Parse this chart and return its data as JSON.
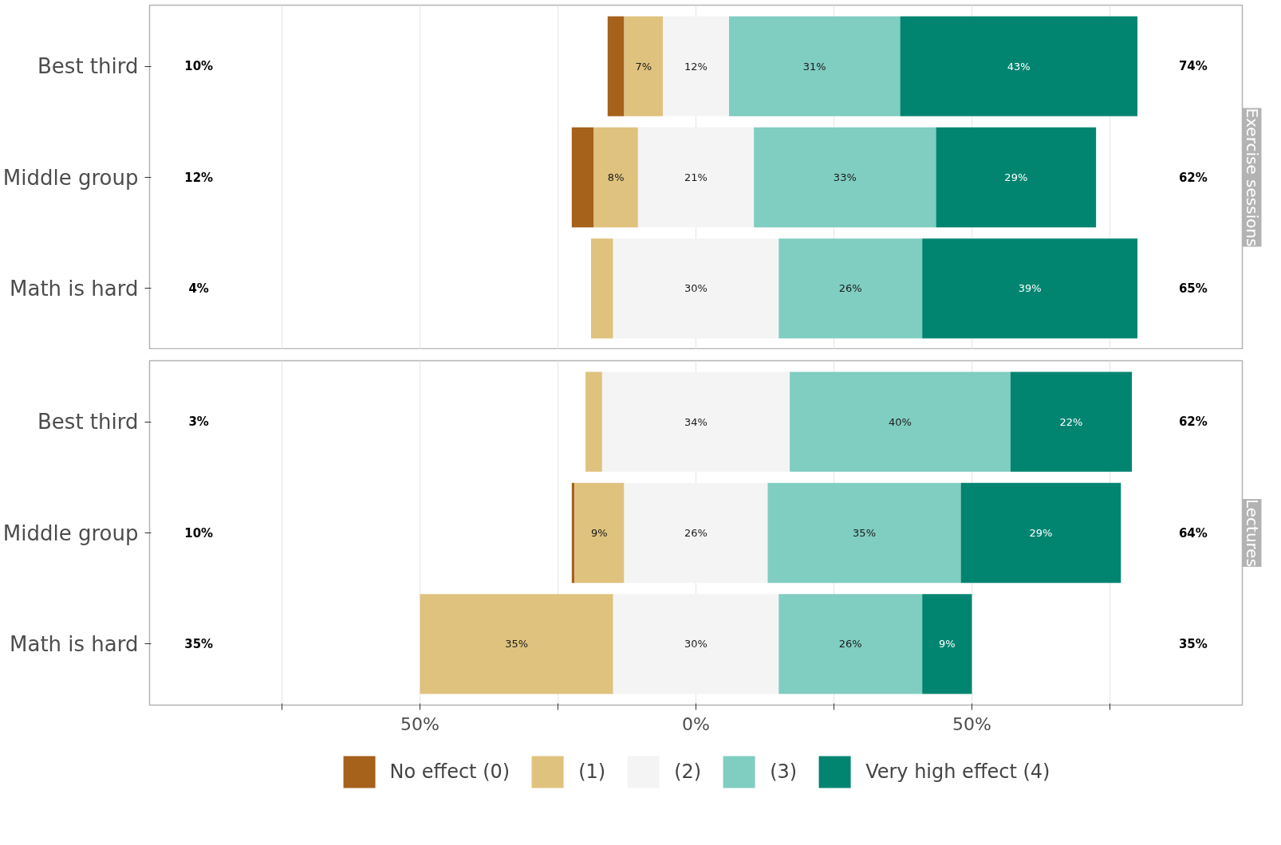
{
  "chart_data": [
    {
      "type": "bar",
      "orientation": "horizontal",
      "title": "Exercise sessions",
      "categories": [
        "Best third",
        "Middle group",
        "Math is hard"
      ],
      "series": [
        {
          "color": "#a6611a",
          "base": [
            -16,
            -22.5,
            null
          ],
          "values": [
            3,
            4,
            null
          ],
          "value_labels": [
            null,
            null,
            null
          ]
        },
        {
          "color": "#dfc27d",
          "base": [
            -13,
            -18.5,
            -19
          ],
          "values": [
            7,
            8,
            4
          ],
          "value_labels": [
            "7%",
            "8%",
            null
          ]
        },
        {
          "color": "#f4f4f4",
          "base": [
            -6,
            -10.5,
            -15
          ],
          "values": [
            12,
            21,
            30
          ],
          "value_labels": [
            "12%",
            "21%",
            "30%"
          ]
        },
        {
          "color": "#80cdc1",
          "base": [
            6,
            10.5,
            15
          ],
          "values": [
            31,
            33,
            26
          ],
          "value_labels": [
            "31%",
            "33%",
            "26%"
          ]
        },
        {
          "color": "#018571",
          "base": [
            37,
            43.5,
            41
          ],
          "values": [
            43,
            29,
            39
          ],
          "value_labels": [
            "43%",
            "29%",
            "39%"
          ]
        }
      ],
      "xlim": [
        -99,
        99
      ],
      "xticks": [
        {
          "value": -75,
          "label": null
        },
        {
          "value": -50,
          "label": null
        },
        {
          "value": -25,
          "label": null
        },
        {
          "value": 0,
          "label": null
        },
        {
          "value": 25,
          "label": null
        },
        {
          "value": 50,
          "label": null
        },
        {
          "value": 75,
          "label": null
        }
      ],
      "tick_labels": "y",
      "grid": "x",
      "annotations": [
        "10%",
        "12%",
        "4%",
        "74%",
        "62%",
        "65%"
      ]
    },
    {
      "type": "bar",
      "orientation": "horizontal",
      "title": "Lectures",
      "categories": [
        "Best third",
        "Middle group",
        "Math is hard"
      ],
      "series": [
        {
          "name": "No effect (0)",
          "color": "#a6611a",
          "base": [
            null,
            -22.5,
            null
          ],
          "values": [
            null,
            0.5,
            null
          ],
          "value_labels": [
            null,
            null,
            null
          ]
        },
        {
          "name": "(1)",
          "color": "#dfc27d",
          "base": [
            -20,
            -22,
            -50
          ],
          "values": [
            3,
            9,
            35
          ],
          "value_labels": [
            null,
            "9%",
            "35%"
          ]
        },
        {
          "name": "(2)",
          "color": "#f4f4f4",
          "base": [
            -17,
            -13,
            -15
          ],
          "values": [
            34,
            26,
            30
          ],
          "value_labels": [
            "34%",
            "26%",
            "30%"
          ]
        },
        {
          "name": "(3)",
          "color": "#80cdc1",
          "base": [
            17,
            13,
            15
          ],
          "values": [
            40,
            35,
            26
          ],
          "value_labels": [
            "40%",
            "35%",
            "26%"
          ]
        },
        {
          "name": "Very high effect (4)",
          "color": "#018571",
          "base": [
            57,
            48,
            41
          ],
          "values": [
            22,
            29,
            9
          ],
          "value_labels": [
            "22%",
            "29%",
            "9%"
          ]
        }
      ],
      "xlim": [
        -99,
        99
      ],
      "xticks": [
        {
          "value": -75,
          "label": null
        },
        {
          "value": -50,
          "label": "50%"
        },
        {
          "value": -25,
          "label": null
        },
        {
          "value": 0,
          "label": "0%"
        },
        {
          "value": 25,
          "label": null
        },
        {
          "value": 50,
          "label": "50%"
        },
        {
          "value": 75,
          "label": null
        }
      ],
      "grid": "x",
      "legend": "bottom",
      "annotations": [
        "3%",
        "10%",
        "35%",
        "62%",
        "64%",
        "35%"
      ]
    }
  ]
}
